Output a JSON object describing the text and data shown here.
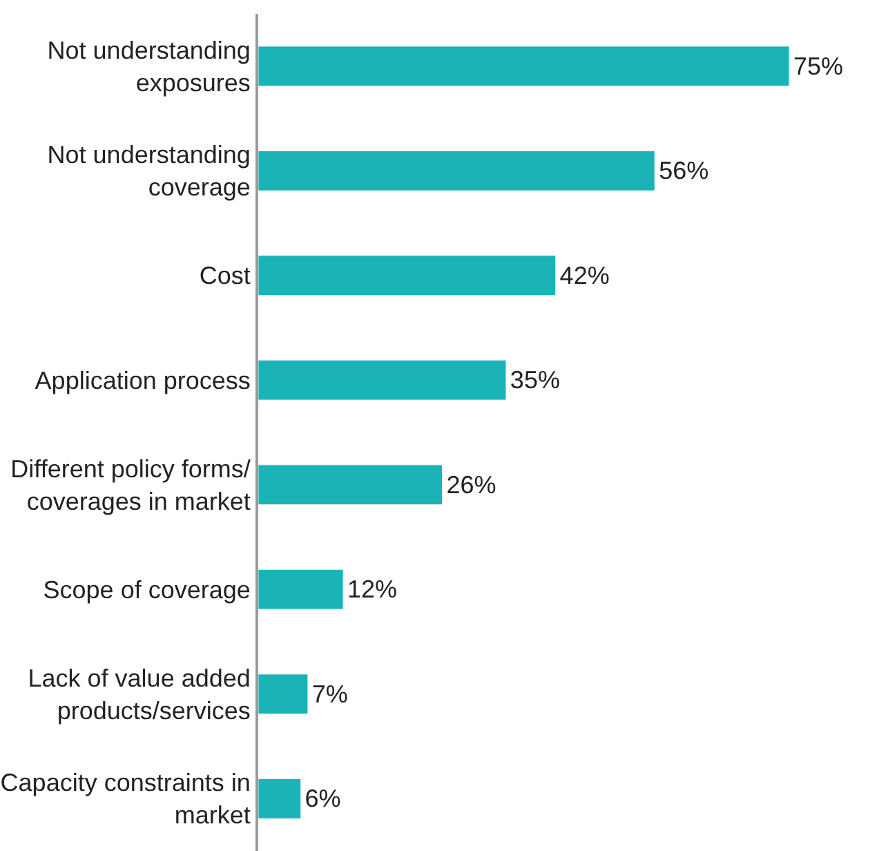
{
  "chart_data": {
    "type": "bar",
    "orientation": "horizontal",
    "categories": [
      "Not understanding exposures",
      "Not understanding coverage",
      "Cost",
      "Application process",
      "Different policy forms/ coverages in market",
      "Scope of coverage",
      "Lack of value added products/services",
      "Capacity constraints in market"
    ],
    "values": [
      75,
      56,
      42,
      35,
      26,
      12,
      7,
      6
    ],
    "value_labels": [
      "75%",
      "56%",
      "42%",
      "35%",
      "26%",
      "12%",
      "7%",
      "6%"
    ],
    "color": "#1ab3b6"
  }
}
